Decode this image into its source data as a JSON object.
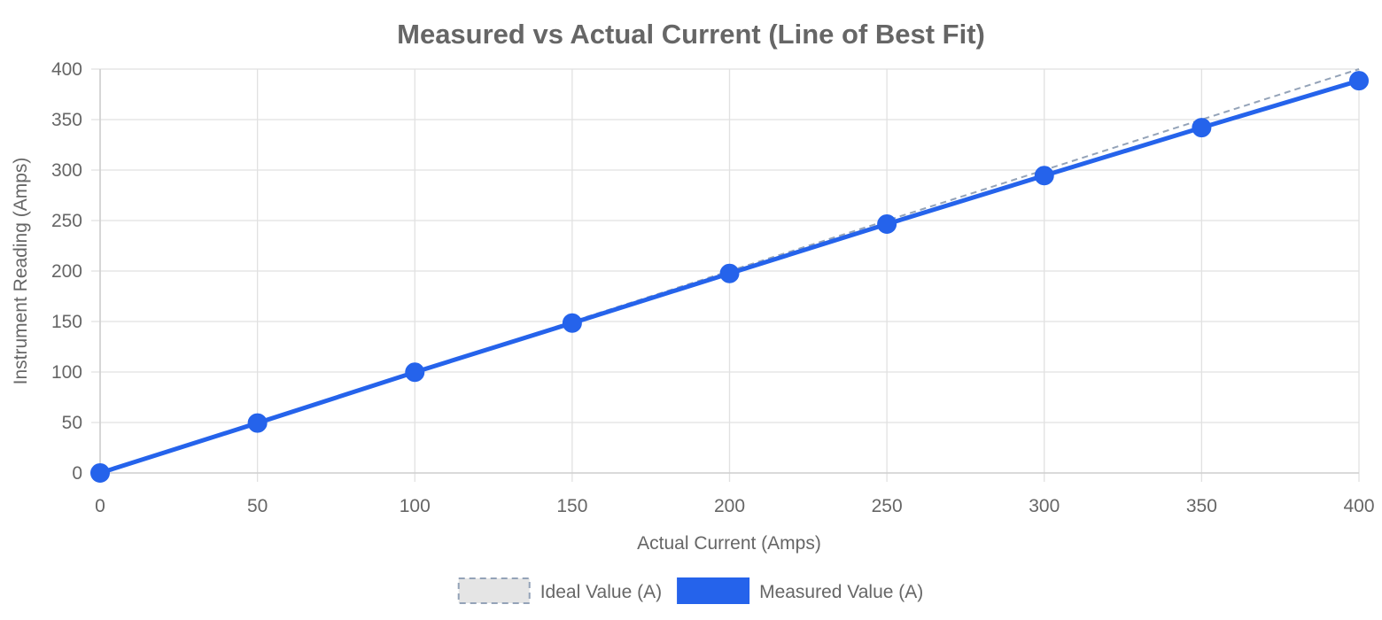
{
  "chart_data": {
    "type": "line",
    "title": "Measured vs Actual Current (Line of Best Fit)",
    "xlabel": "Actual Current (Amps)",
    "ylabel": "Instrument Reading (Amps)",
    "xlim": [
      0,
      400
    ],
    "ylim": [
      0,
      400
    ],
    "x_ticks": [
      "0",
      "50",
      "100",
      "150",
      "200",
      "250",
      "300",
      "350",
      "400"
    ],
    "y_ticks": [
      "0",
      "50",
      "100",
      "150",
      "200",
      "250",
      "300",
      "350",
      "400"
    ],
    "x": [
      0,
      50,
      100,
      150,
      200,
      250,
      300,
      350,
      400
    ],
    "series": [
      {
        "name": "Ideal Value (A)",
        "values": [
          0,
          50,
          100,
          150,
          200,
          250,
          300,
          350,
          400
        ],
        "color": "#94a3b8",
        "style": "dashed",
        "markers": false
      },
      {
        "name": "Measured Value (A)",
        "values": [
          0,
          49.5,
          99.8,
          148.5,
          197.6,
          246.5,
          294.5,
          342,
          388.5
        ],
        "color": "#2563eb",
        "style": "solid",
        "markers": true
      }
    ],
    "grid": true,
    "legend_position": "bottom"
  }
}
